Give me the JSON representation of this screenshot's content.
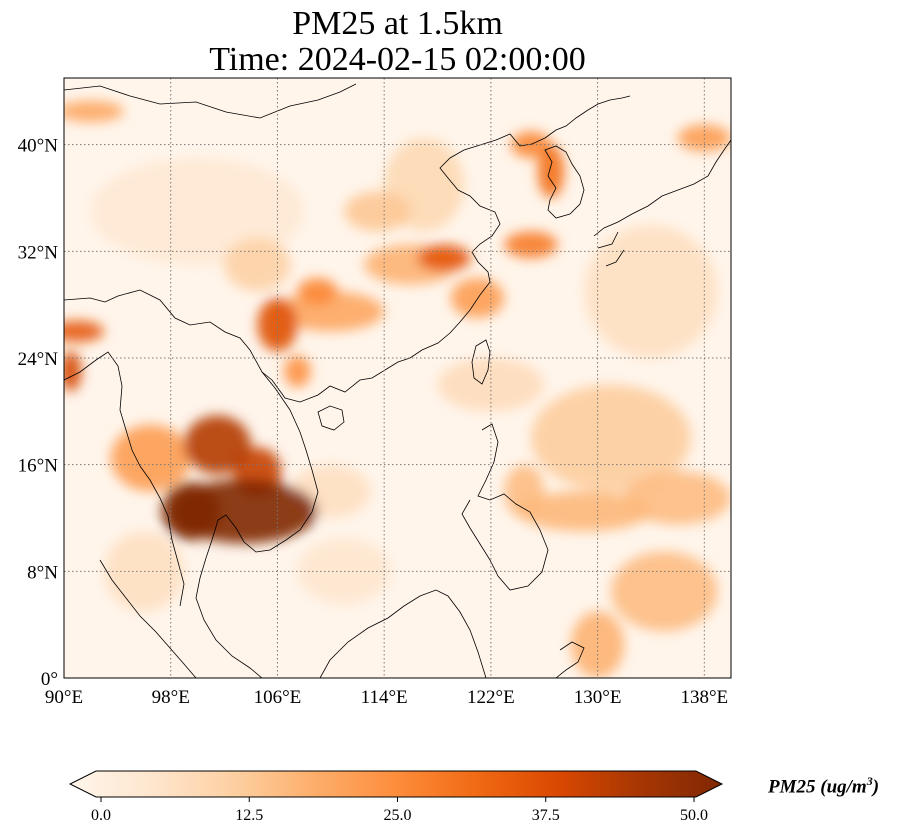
{
  "title": {
    "line1": "PM25 at 1.5km",
    "line2": "Time: 2024-02-15 02:00:00"
  },
  "map": {
    "extent": {
      "lon": [
        90,
        140
      ],
      "lat": [
        0,
        45
      ]
    },
    "lon_ticks": [
      {
        "value": 90,
        "label": "90°E"
      },
      {
        "value": 98,
        "label": "98°E"
      },
      {
        "value": 106,
        "label": "106°E"
      },
      {
        "value": 114,
        "label": "114°E"
      },
      {
        "value": 122,
        "label": "122°E"
      },
      {
        "value": 130,
        "label": "130°E"
      },
      {
        "value": 138,
        "label": "138°E"
      }
    ],
    "lat_ticks": [
      {
        "value": 0,
        "label": "0°"
      },
      {
        "value": 8,
        "label": "8°N"
      },
      {
        "value": 16,
        "label": "16°N"
      },
      {
        "value": 24,
        "label": "24°N"
      },
      {
        "value": 32,
        "label": "32°N"
      },
      {
        "value": 40,
        "label": "40°N"
      }
    ],
    "grid": true,
    "field": "PM25",
    "hotspots": [
      {
        "lon": 103.5,
        "lat": 12.5,
        "rlon": 5.5,
        "rlat": 2.4,
        "value": 55
      },
      {
        "lon": 99.5,
        "lat": 12.5,
        "rlon": 2.2,
        "rlat": 2.2,
        "value": 50
      },
      {
        "lon": 101.5,
        "lat": 17.5,
        "rlon": 2.5,
        "rlat": 2.2,
        "value": 42
      },
      {
        "lon": 104.5,
        "lat": 15.5,
        "rlon": 1.8,
        "rlat": 1.8,
        "value": 40
      },
      {
        "lon": 96.5,
        "lat": 16.5,
        "rlon": 3.0,
        "rlat": 2.5,
        "value": 22
      },
      {
        "lon": 106.0,
        "lat": 26.5,
        "rlon": 1.5,
        "rlat": 2.0,
        "value": 36
      },
      {
        "lon": 107.5,
        "lat": 23.0,
        "rlon": 1.0,
        "rlat": 1.2,
        "value": 24
      },
      {
        "lon": 110.0,
        "lat": 27.5,
        "rlon": 4.0,
        "rlat": 1.5,
        "value": 20
      },
      {
        "lon": 109.0,
        "lat": 29.0,
        "rlon": 1.5,
        "rlat": 1.0,
        "value": 26
      },
      {
        "lon": 118.5,
        "lat": 31.5,
        "rlon": 2.0,
        "rlat": 1.0,
        "value": 35
      },
      {
        "lon": 116.0,
        "lat": 31.0,
        "rlon": 3.5,
        "rlat": 1.5,
        "value": 18
      },
      {
        "lon": 121.0,
        "lat": 28.5,
        "rlon": 2.0,
        "rlat": 1.5,
        "value": 22
      },
      {
        "lon": 125.0,
        "lat": 32.5,
        "rlon": 2.0,
        "rlat": 1.0,
        "value": 28
      },
      {
        "lon": 126.5,
        "lat": 38.0,
        "rlon": 1.0,
        "rlat": 2.0,
        "value": 30
      },
      {
        "lon": 125.0,
        "lat": 40.0,
        "rlon": 1.5,
        "rlat": 1.0,
        "value": 26
      },
      {
        "lon": 91.0,
        "lat": 26.0,
        "rlon": 2.0,
        "rlat": 0.8,
        "value": 34
      },
      {
        "lon": 90.5,
        "lat": 23.0,
        "rlon": 0.8,
        "rlat": 1.5,
        "value": 38
      },
      {
        "lon": 92.0,
        "lat": 42.5,
        "rlon": 2.5,
        "rlat": 0.8,
        "value": 20
      },
      {
        "lon": 113.5,
        "lat": 35.0,
        "rlon": 2.5,
        "rlat": 1.5,
        "value": 14
      },
      {
        "lon": 104.5,
        "lat": 31.0,
        "rlon": 2.5,
        "rlat": 2.0,
        "value": 12
      },
      {
        "lon": 117.0,
        "lat": 37.0,
        "rlon": 3.0,
        "rlat": 3.5,
        "value": 10
      },
      {
        "lon": 131.0,
        "lat": 18.0,
        "rlon": 6.0,
        "rlat": 4.0,
        "value": 13
      },
      {
        "lon": 129.0,
        "lat": 12.5,
        "rlon": 5.0,
        "rlat": 1.5,
        "value": 17
      },
      {
        "lon": 136.0,
        "lat": 13.5,
        "rlon": 4.0,
        "rlat": 2.0,
        "value": 16
      },
      {
        "lon": 135.0,
        "lat": 6.5,
        "rlon": 4.0,
        "rlat": 3.0,
        "value": 16
      },
      {
        "lon": 130.0,
        "lat": 2.5,
        "rlon": 2.0,
        "rlat": 2.5,
        "value": 18
      },
      {
        "lon": 138.0,
        "lat": 40.5,
        "rlon": 2.0,
        "rlat": 1.0,
        "value": 22
      },
      {
        "lon": 122.0,
        "lat": 22.0,
        "rlon": 4.0,
        "rlat": 2.0,
        "value": 9
      },
      {
        "lon": 124.5,
        "lat": 14.0,
        "rlon": 1.5,
        "rlat": 2.0,
        "value": 16
      },
      {
        "lon": 110.0,
        "lat": 14.0,
        "rlon": 3.0,
        "rlat": 2.0,
        "value": 8
      },
      {
        "lon": 111.0,
        "lat": 8.0,
        "rlon": 3.5,
        "rlat": 2.5,
        "value": 6
      },
      {
        "lon": 96.0,
        "lat": 8.0,
        "rlon": 3.0,
        "rlat": 3.0,
        "value": 8
      },
      {
        "lon": 134.0,
        "lat": 29.0,
        "rlon": 5.0,
        "rlat": 5.0,
        "value": 8
      },
      {
        "lon": 100.0,
        "lat": 35.0,
        "rlon": 8.0,
        "rlat": 4.0,
        "value": 5
      }
    ]
  },
  "colorbar": {
    "min": 0,
    "max": 50,
    "ticks": [
      "0.0",
      "12.5",
      "25.0",
      "37.5",
      "50.0"
    ],
    "label_main": "PM25 (ug/m",
    "label_sup": "3",
    "label_close": ")",
    "colors": [
      "#fff5eb",
      "#fee6ce",
      "#fdd0a2",
      "#fdae6b",
      "#fd8d3c",
      "#f16913",
      "#d94801",
      "#a63603",
      "#7f2704"
    ]
  }
}
